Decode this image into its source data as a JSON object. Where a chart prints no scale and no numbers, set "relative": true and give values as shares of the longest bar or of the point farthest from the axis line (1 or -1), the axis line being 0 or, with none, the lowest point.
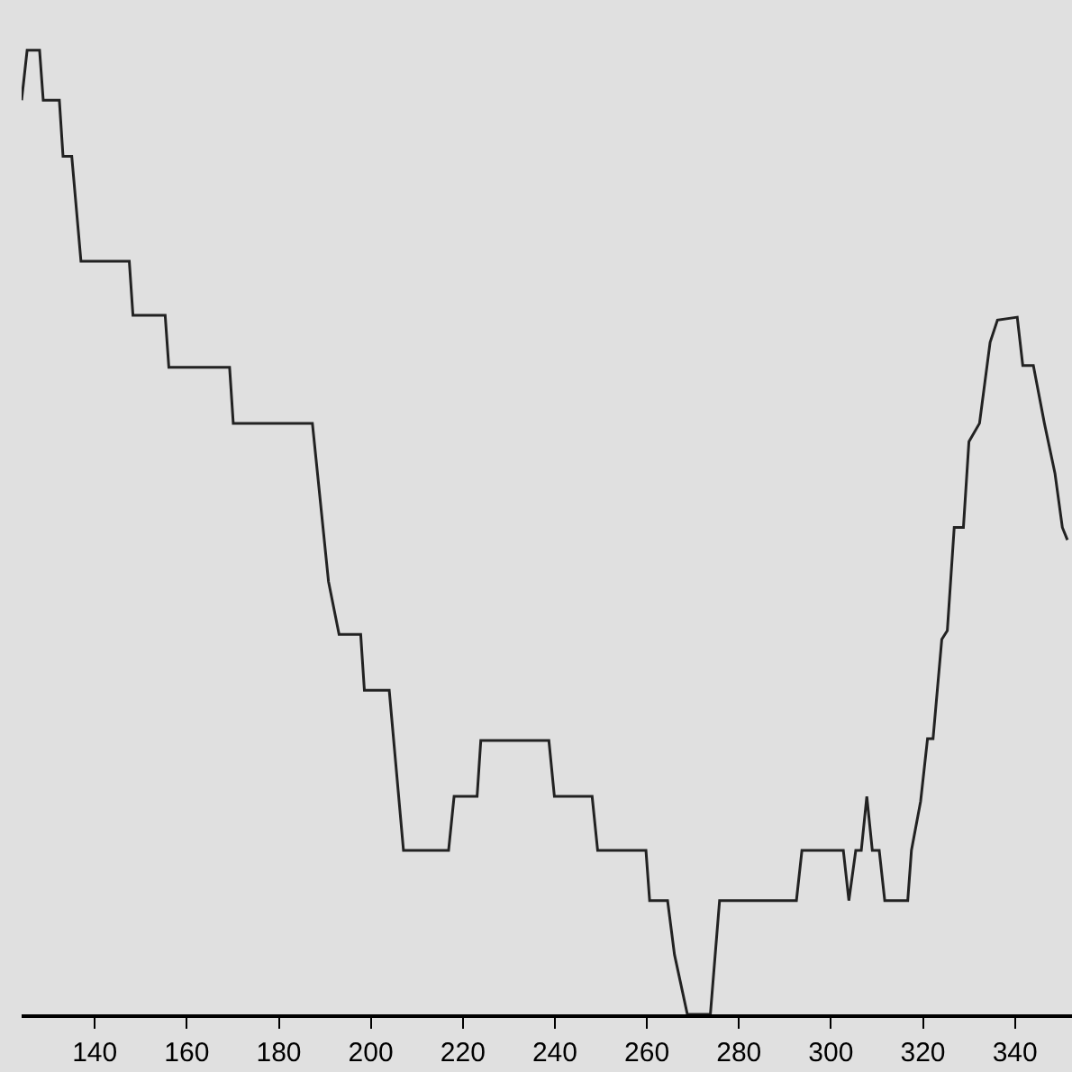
{
  "chart_data": {
    "type": "line",
    "relative": true,
    "grid": false,
    "marker": "none",
    "line_style": "solid",
    "xlim": [
      124.1,
      352.4
    ],
    "xticks": [
      140,
      160,
      180,
      200,
      220,
      240,
      260,
      280,
      300,
      320,
      340
    ],
    "x": [
      124.1,
      125.3,
      128.0,
      128.8,
      132.3,
      133.1,
      135.0,
      137.0,
      147.5,
      148.3,
      155.3,
      156.1,
      169.3,
      170.1,
      187.3,
      190.8,
      193.1,
      197.8,
      198.6,
      204.0,
      207.1,
      216.9,
      218.1,
      223.1,
      223.9,
      238.7,
      239.9,
      248.1,
      249.3,
      259.8,
      260.6,
      264.5,
      266.0,
      268.8,
      273.8,
      275.8,
      292.5,
      293.7,
      302.7,
      303.9,
      305.4,
      306.6,
      307.8,
      309.0,
      310.5,
      311.7,
      316.7,
      317.5,
      319.5,
      321.0,
      322.2,
      324.1,
      325.3,
      326.8,
      328.8,
      330.0,
      332.3,
      334.6,
      336.2,
      340.5,
      341.7,
      344.0,
      346.4,
      348.7,
      350.3,
      351.4
    ],
    "series": [
      {
        "color": "#222222",
        "values": [
          0.948,
          1.0,
          1.0,
          0.948,
          0.948,
          0.89,
          0.89,
          0.781,
          0.781,
          0.725,
          0.725,
          0.671,
          0.671,
          0.613,
          0.613,
          0.449,
          0.394,
          0.394,
          0.336,
          0.336,
          0.17,
          0.17,
          0.226,
          0.226,
          0.284,
          0.284,
          0.226,
          0.226,
          0.17,
          0.17,
          0.118,
          0.118,
          0.062,
          0.0,
          0.0,
          0.118,
          0.118,
          0.17,
          0.17,
          0.118,
          0.17,
          0.17,
          0.226,
          0.17,
          0.17,
          0.118,
          0.118,
          0.17,
          0.221,
          0.286,
          0.286,
          0.389,
          0.398,
          0.505,
          0.505,
          0.594,
          0.613,
          0.697,
          0.72,
          0.723,
          0.673,
          0.673,
          0.613,
          0.561,
          0.505,
          0.492
        ]
      }
    ]
  }
}
